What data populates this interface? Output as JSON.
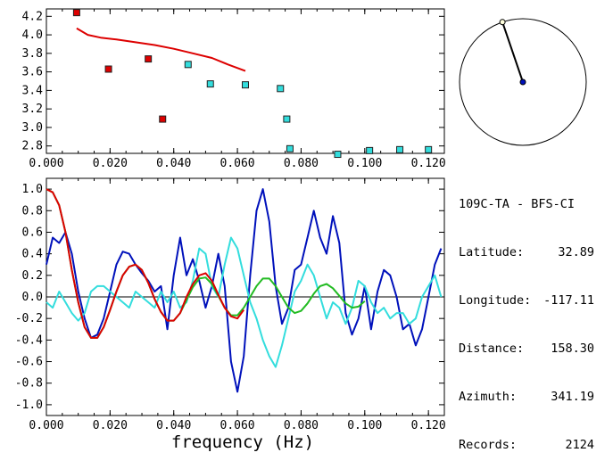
{
  "station": {
    "title": "109C-TA - BFS-CI",
    "fields": [
      {
        "label": "Latitude:",
        "value": "32.89"
      },
      {
        "label": "Longitude:",
        "value": "-117.11"
      },
      {
        "label": "Distance:",
        "value": "158.30"
      },
      {
        "label": "Azimuth:",
        "value": "341.19"
      },
      {
        "label": "Records:",
        "value": "2124"
      }
    ]
  },
  "colors": {
    "red": "#dd0000",
    "cyan": "#33dddd",
    "blue": "#0011bb",
    "green": "#22bb22",
    "axis": "#000000"
  },
  "chart_data": [
    {
      "type": "scatter",
      "title": "",
      "xlabel": "",
      "ylabel": "",
      "xlim": [
        0.0,
        0.125
      ],
      "ylim": [
        2.72,
        4.28
      ],
      "x_ticks": [
        "0.000",
        "0.020",
        "0.040",
        "0.060",
        "0.080",
        "0.100",
        "0.120"
      ],
      "y_ticks": [
        "2.8",
        "3.0",
        "3.2",
        "3.4",
        "3.6",
        "3.8",
        "4.0",
        "4.2"
      ],
      "series": [
        {
          "color": "red",
          "marker": "square",
          "x": [
            0.0095,
            0.0195,
            0.032,
            0.0365
          ],
          "y": [
            4.24,
            3.63,
            3.74,
            3.09
          ]
        },
        {
          "color": "cyan",
          "marker": "square",
          "x": [
            0.0445,
            0.0515,
            0.0625,
            0.0735,
            0.0755,
            0.0765,
            0.0915,
            0.1015,
            0.111,
            0.12
          ],
          "y": [
            3.68,
            3.47,
            3.46,
            3.42,
            3.09,
            2.77,
            2.71,
            2.75,
            2.76,
            2.76
          ]
        },
        {
          "color": "red",
          "marker": "line",
          "x": [
            0.0095,
            0.013,
            0.017,
            0.022,
            0.028,
            0.034,
            0.04,
            0.046,
            0.052,
            0.057,
            0.0625
          ],
          "y": [
            4.07,
            4.0,
            3.97,
            3.95,
            3.92,
            3.89,
            3.85,
            3.8,
            3.75,
            3.68,
            3.61
          ]
        }
      ]
    },
    {
      "type": "line",
      "title": "",
      "xlabel": "frequency (Hz)",
      "ylabel": "",
      "xlim": [
        0.0,
        0.125
      ],
      "ylim": [
        -1.1,
        1.1
      ],
      "x_ticks": [
        "0.000",
        "0.020",
        "0.040",
        "0.060",
        "0.080",
        "0.100",
        "0.120"
      ],
      "y_ticks": [
        "1.0",
        "0.8",
        "0.6",
        "0.4",
        "0.2",
        "0.0",
        "-0.2",
        "-0.4",
        "-0.6",
        "-0.8",
        "-1.0"
      ],
      "series": [
        {
          "color": "blue",
          "x": [
            0.0,
            0.002,
            0.004,
            0.006,
            0.008,
            0.01,
            0.012,
            0.014,
            0.016,
            0.018,
            0.02,
            0.022,
            0.024,
            0.026,
            0.028,
            0.03,
            0.032,
            0.034,
            0.036,
            0.038,
            0.04,
            0.042,
            0.044,
            0.046,
            0.048,
            0.05,
            0.052,
            0.054,
            0.056,
            0.058,
            0.06,
            0.062,
            0.064,
            0.066,
            0.068,
            0.07,
            0.072,
            0.074,
            0.076,
            0.078,
            0.08,
            0.082,
            0.084,
            0.086,
            0.088,
            0.09,
            0.092,
            0.094,
            0.096,
            0.098,
            0.1,
            0.102,
            0.104,
            0.106,
            0.108,
            0.11,
            0.112,
            0.114,
            0.116,
            0.118,
            0.12,
            0.122,
            0.124
          ],
          "y": [
            0.3,
            0.55,
            0.5,
            0.6,
            0.4,
            0.05,
            -0.2,
            -0.38,
            -0.35,
            -0.2,
            0.05,
            0.3,
            0.42,
            0.4,
            0.3,
            0.22,
            0.15,
            0.05,
            0.1,
            -0.3,
            0.2,
            0.55,
            0.2,
            0.35,
            0.15,
            -0.1,
            0.1,
            0.4,
            0.1,
            -0.6,
            -0.88,
            -0.55,
            0.2,
            0.8,
            1.0,
            0.7,
            0.1,
            -0.25,
            -0.1,
            0.25,
            0.3,
            0.55,
            0.8,
            0.55,
            0.4,
            0.75,
            0.5,
            -0.15,
            -0.35,
            -0.2,
            0.1,
            -0.3,
            0.05,
            0.25,
            0.2,
            0.0,
            -0.3,
            -0.25,
            -0.45,
            -0.3,
            0.0,
            0.3,
            0.45
          ]
        },
        {
          "color": "cyan",
          "x": [
            0.0,
            0.002,
            0.004,
            0.006,
            0.008,
            0.01,
            0.012,
            0.014,
            0.016,
            0.018,
            0.02,
            0.022,
            0.024,
            0.026,
            0.028,
            0.03,
            0.032,
            0.034,
            0.036,
            0.038,
            0.04,
            0.042,
            0.044,
            0.046,
            0.048,
            0.05,
            0.052,
            0.054,
            0.056,
            0.058,
            0.06,
            0.062,
            0.064,
            0.066,
            0.068,
            0.07,
            0.072,
            0.074,
            0.076,
            0.078,
            0.08,
            0.082,
            0.084,
            0.086,
            0.088,
            0.09,
            0.092,
            0.094,
            0.096,
            0.098,
            0.1,
            0.102,
            0.104,
            0.106,
            0.108,
            0.11,
            0.112,
            0.114,
            0.116,
            0.118,
            0.12,
            0.122,
            0.124
          ],
          "y": [
            -0.05,
            -0.1,
            0.05,
            -0.05,
            -0.15,
            -0.22,
            -0.15,
            0.05,
            0.1,
            0.1,
            0.05,
            0.0,
            -0.05,
            -0.1,
            0.05,
            0.0,
            -0.05,
            -0.1,
            0.05,
            -0.05,
            0.05,
            -0.1,
            -0.05,
            0.15,
            0.45,
            0.4,
            0.1,
            0.0,
            0.3,
            0.55,
            0.45,
            0.2,
            -0.05,
            -0.2,
            -0.4,
            -0.55,
            -0.65,
            -0.45,
            -0.2,
            0.05,
            0.15,
            0.3,
            0.2,
            0.0,
            -0.2,
            -0.05,
            -0.1,
            -0.25,
            -0.1,
            0.15,
            0.1,
            -0.05,
            -0.15,
            -0.1,
            -0.2,
            -0.15,
            -0.15,
            -0.25,
            -0.2,
            0.0,
            0.1,
            0.2,
            0.0
          ]
        },
        {
          "color": "green",
          "x": [
            0.0,
            0.002,
            0.004,
            0.006,
            0.008,
            0.01,
            0.012,
            0.014,
            0.016,
            0.018,
            0.02,
            0.022,
            0.024,
            0.026,
            0.028,
            0.03,
            0.032,
            0.034,
            0.036,
            0.038,
            0.04,
            0.042,
            0.044,
            0.046,
            0.048,
            0.05,
            0.052,
            0.054,
            0.056,
            0.058,
            0.06,
            0.062,
            0.064,
            0.066,
            0.068,
            0.07,
            0.072,
            0.074,
            0.076,
            0.078,
            0.08,
            0.082,
            0.084,
            0.086,
            0.088,
            0.09,
            0.092,
            0.094,
            0.096,
            0.098,
            0.1
          ],
          "y": [
            1.0,
            0.97,
            0.85,
            0.6,
            0.25,
            -0.05,
            -0.28,
            -0.38,
            -0.38,
            -0.28,
            -0.12,
            0.05,
            0.2,
            0.28,
            0.3,
            0.25,
            0.13,
            -0.02,
            -0.14,
            -0.22,
            -0.22,
            -0.15,
            -0.03,
            0.09,
            0.17,
            0.18,
            0.12,
            0.01,
            -0.1,
            -0.17,
            -0.17,
            -0.1,
            0.0,
            0.1,
            0.17,
            0.17,
            0.1,
            0.0,
            -0.1,
            -0.15,
            -0.13,
            -0.06,
            0.03,
            0.1,
            0.12,
            0.08,
            0.01,
            -0.06,
            -0.1,
            -0.09,
            -0.04
          ]
        },
        {
          "color": "red",
          "x": [
            0.0,
            0.002,
            0.004,
            0.006,
            0.008,
            0.01,
            0.012,
            0.014,
            0.016,
            0.018,
            0.02,
            0.022,
            0.024,
            0.026,
            0.028,
            0.03,
            0.032,
            0.034,
            0.036,
            0.038,
            0.04,
            0.042,
            0.044,
            0.046,
            0.048,
            0.05,
            0.052,
            0.054,
            0.056,
            0.058,
            0.06,
            0.062
          ],
          "y": [
            1.0,
            0.97,
            0.85,
            0.6,
            0.25,
            -0.05,
            -0.28,
            -0.38,
            -0.38,
            -0.28,
            -0.12,
            0.05,
            0.2,
            0.28,
            0.3,
            0.25,
            0.13,
            -0.02,
            -0.14,
            -0.22,
            -0.22,
            -0.15,
            0.0,
            0.12,
            0.2,
            0.22,
            0.15,
            0.02,
            -0.1,
            -0.18,
            -0.2,
            -0.12
          ]
        }
      ]
    },
    {
      "type": "scatter",
      "title": "",
      "azimuth_deg": 341.19,
      "xlim": [
        -1,
        1
      ],
      "ylim": [
        -1,
        1
      ],
      "series": [
        {
          "color": "blue",
          "marker": "circle",
          "x": [
            0.0
          ],
          "y": [
            0.0
          ]
        },
        {
          "color": "white",
          "marker": "circle",
          "x": [
            -0.32
          ],
          "y": [
            0.95
          ]
        }
      ]
    }
  ]
}
